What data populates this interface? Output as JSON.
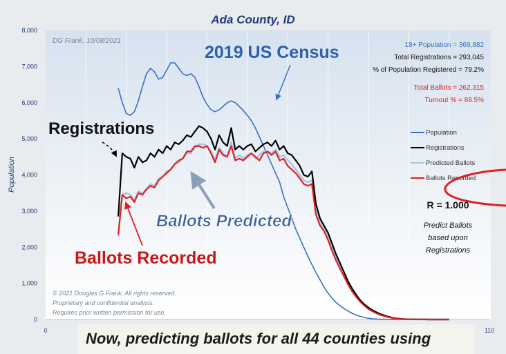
{
  "chart_data": {
    "type": "line",
    "title": "Ada County, ID",
    "credit": "DG Frank, 10/08/2021",
    "ylabel": "Population",
    "xlim": [
      0,
      110
    ],
    "ylim": [
      0,
      8000
    ],
    "x_tick_labels": [
      "0",
      "110"
    ],
    "y_ticks": [
      0,
      1000,
      2000,
      3000,
      4000,
      5000,
      6000,
      7000,
      8000
    ],
    "y_tick_labels": [
      "0",
      "1,000",
      "2,000",
      "3,000",
      "4,000",
      "5,000",
      "6,000",
      "7,000",
      "8,000"
    ],
    "stats": {
      "population": "18+ Population = 369,882",
      "registrations": "Total Registrations = 293,045",
      "pct_registered": "% of Population Registered = 79.2%",
      "total_ballots": "Total Ballots = 262,315",
      "turnout": "Turnout % = 89.5%"
    },
    "legend_position": "right",
    "series": [
      {
        "name": "Population",
        "color": "#3a6fc0",
        "x": [
          18,
          19,
          20,
          21,
          22,
          23,
          24,
          25,
          26,
          27,
          28,
          29,
          30,
          31,
          32,
          33,
          34,
          35,
          36,
          37,
          38,
          39,
          40,
          41,
          42,
          43,
          44,
          45,
          46,
          47,
          48,
          49,
          50,
          51,
          52,
          53,
          54,
          55,
          56,
          57,
          58,
          59,
          60,
          61,
          62,
          63,
          64,
          65,
          66,
          67,
          68,
          69,
          70,
          71,
          72,
          73,
          74,
          75,
          76,
          77,
          78,
          79,
          80,
          81,
          82,
          83,
          84,
          85,
          86,
          87,
          88,
          89,
          90,
          91,
          92,
          93,
          94,
          95,
          96,
          97,
          98,
          99,
          100
        ],
        "values": [
          6400,
          6000,
          5700,
          5650,
          5750,
          6050,
          6450,
          6800,
          6950,
          6850,
          6650,
          6700,
          6900,
          7100,
          7100,
          6950,
          6800,
          6750,
          6800,
          6700,
          6450,
          6150,
          5950,
          5800,
          5750,
          5800,
          5900,
          6000,
          6050,
          6000,
          5900,
          5780,
          5650,
          5500,
          5300,
          5050,
          4800,
          4550,
          4300,
          4050,
          3800,
          3400,
          3100,
          2800,
          2500,
          2250,
          2000,
          1750,
          1520,
          1300,
          1100,
          900,
          730,
          590,
          470,
          380,
          300,
          230,
          170,
          120,
          85,
          55,
          35,
          20,
          12,
          8,
          5,
          3,
          2,
          1,
          1,
          1,
          1,
          1,
          0,
          0,
          0,
          0,
          0,
          0,
          0,
          0,
          0
        ]
      },
      {
        "name": "Registrations",
        "color": "#000000",
        "x": [
          18,
          19,
          20,
          21,
          22,
          23,
          24,
          25,
          26,
          27,
          28,
          29,
          30,
          31,
          32,
          33,
          34,
          35,
          36,
          37,
          38,
          39,
          40,
          41,
          42,
          43,
          44,
          45,
          46,
          47,
          48,
          49,
          50,
          51,
          52,
          53,
          54,
          55,
          56,
          57,
          58,
          59,
          60,
          61,
          62,
          63,
          64,
          65,
          66,
          67,
          68,
          69,
          70,
          71,
          72,
          73,
          74,
          75,
          76,
          77,
          78,
          79,
          80,
          81,
          82,
          83,
          84,
          85,
          86,
          87,
          88,
          89,
          90,
          91,
          92,
          93,
          94,
          95,
          96,
          97,
          98,
          99,
          100
        ],
        "values": [
          2850,
          4600,
          4500,
          4450,
          4200,
          4500,
          4350,
          4400,
          4600,
          4500,
          4700,
          4600,
          4800,
          4700,
          4900,
          4850,
          4950,
          5100,
          5050,
          5200,
          5350,
          5300,
          5200,
          5000,
          4700,
          5100,
          4900,
          4800,
          5300,
          4700,
          4800,
          4700,
          4800,
          4850,
          4650,
          4750,
          4850,
          4900,
          4800,
          4950,
          4700,
          4800,
          4600,
          4550,
          4400,
          4250,
          4000,
          3950,
          4100,
          3200,
          2800,
          2600,
          2400,
          2100,
          1800,
          1550,
          1300,
          1050,
          850,
          680,
          530,
          420,
          330,
          260,
          200,
          150,
          110,
          75,
          50,
          30,
          18,
          10,
          6,
          4,
          2,
          1,
          1,
          0,
          0,
          0,
          0,
          0,
          0
        ]
      },
      {
        "name": "Predicted Ballots",
        "color": "#a8c4e6",
        "x": [
          18,
          19,
          20,
          21,
          22,
          23,
          24,
          25,
          26,
          27,
          28,
          29,
          30,
          31,
          32,
          33,
          34,
          35,
          36,
          37,
          38,
          39,
          40,
          41,
          42,
          43,
          44,
          45,
          46,
          47,
          48,
          49,
          50,
          51,
          52,
          53,
          54,
          55,
          56,
          57,
          58,
          59,
          60,
          61,
          62,
          63,
          64,
          65,
          66,
          67,
          68,
          69,
          70,
          71,
          72,
          73,
          74,
          75,
          76,
          77,
          78,
          79,
          80,
          81,
          82,
          83,
          84,
          85,
          86,
          87,
          88,
          89,
          90,
          91,
          92,
          93,
          94,
          95,
          96,
          97,
          98,
          99,
          100
        ],
        "values": [
          2300,
          3450,
          3500,
          3450,
          3300,
          3550,
          3500,
          3600,
          3750,
          3700,
          3900,
          3950,
          4100,
          4150,
          4300,
          4350,
          4450,
          4600,
          4600,
          4750,
          4850,
          4850,
          4800,
          4650,
          4400,
          4750,
          4600,
          4500,
          4900,
          4450,
          4550,
          4450,
          4550,
          4600,
          4450,
          4550,
          4650,
          4650,
          4600,
          4700,
          4500,
          4550,
          4400,
          4300,
          4150,
          4000,
          3850,
          3800,
          3850,
          3000,
          2700,
          2500,
          2300,
          2000,
          1720,
          1480,
          1240,
          1000,
          800,
          640,
          500,
          390,
          300,
          235,
          180,
          135,
          100,
          70,
          45,
          28,
          16,
          9,
          5,
          3,
          2,
          1,
          1,
          0,
          0,
          0,
          0,
          0,
          0
        ]
      },
      {
        "name": "Ballots Recorded",
        "color": "#e02020",
        "x": [
          18,
          19,
          20,
          21,
          22,
          23,
          24,
          25,
          26,
          27,
          28,
          29,
          30,
          31,
          32,
          33,
          34,
          35,
          36,
          37,
          38,
          39,
          40,
          41,
          42,
          43,
          44,
          45,
          46,
          47,
          48,
          49,
          50,
          51,
          52,
          53,
          54,
          55,
          56,
          57,
          58,
          59,
          60,
          61,
          62,
          63,
          64,
          65,
          66,
          67,
          68,
          69,
          70,
          71,
          72,
          73,
          74,
          75,
          76,
          77,
          78,
          79,
          80,
          81,
          82,
          83,
          84,
          85,
          86,
          87,
          88,
          89,
          90,
          91,
          92,
          93,
          94,
          95,
          96,
          97,
          98,
          99,
          100
        ],
        "values": [
          2350,
          3450,
          3350,
          3400,
          3250,
          3500,
          3450,
          3600,
          3700,
          3650,
          3850,
          3950,
          4050,
          4150,
          4300,
          4400,
          4450,
          4650,
          4650,
          4800,
          4800,
          4750,
          4800,
          4600,
          4350,
          4700,
          4550,
          4500,
          4800,
          4400,
          4450,
          4400,
          4500,
          4600,
          4500,
          4400,
          4600,
          4650,
          4550,
          4650,
          4400,
          4450,
          4250,
          4150,
          4050,
          3900,
          3750,
          3700,
          3750,
          2900,
          2600,
          2450,
          2200,
          1900,
          1630,
          1400,
          1180,
          960,
          770,
          620,
          490,
          380,
          290,
          225,
          170,
          125,
          90,
          62,
          40,
          25,
          14,
          8,
          5,
          3,
          2,
          1,
          1,
          0,
          0,
          0,
          0,
          0,
          0
        ]
      }
    ],
    "annotations": {
      "census": "2019 US Census",
      "registrations": "Registrations",
      "ballots_predicted": "Ballots Predicted",
      "ballots_recorded": "Ballots Recorded",
      "r_value": "R = 1.000",
      "predict_note_1": "Predict Ballots",
      "predict_note_2": "based upon",
      "predict_note_3": "Registrations"
    },
    "copyright": [
      "© 2021 Douglas G Frank, All rights reserved.",
      "Proprietary and confidential analysis.",
      "Requires prior written permission for use."
    ]
  },
  "caption": "Now, predicting ballots for all 44 counties using"
}
